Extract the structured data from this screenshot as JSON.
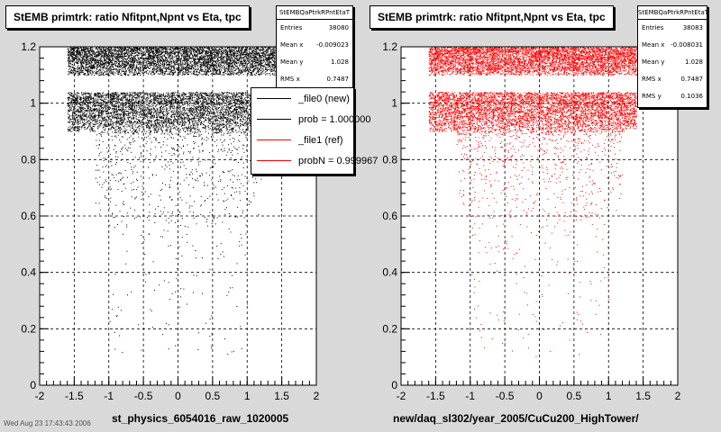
{
  "panels": [
    {
      "title": "StEMB primtrk: ratio Nfitpnt,Npnt vs Eta, tpc",
      "stats": {
        "name": "StEMBQaPtrkRPntEtaT",
        "rows": [
          {
            "label": "Entries",
            "value": "38080"
          },
          {
            "label": "Mean x",
            "value": "-0.009023"
          },
          {
            "label": "Mean y",
            "value": "1.028"
          },
          {
            "label": "RMS x",
            "value": "0.7487"
          }
        ]
      },
      "xlabel": "st_physics_6054016_raw_1020005",
      "color": "#000000"
    },
    {
      "title": "StEMB primtrk: ratio Nfitpnt,Npnt vs Eta, tpc",
      "stats": {
        "name": "StEMBQaPtrkRPntEtaT",
        "rows": [
          {
            "label": "Entries",
            "value": "38083"
          },
          {
            "label": "Mean x",
            "value": "-0.008031"
          },
          {
            "label": "Mean y",
            "value": "1.028"
          },
          {
            "label": "RMS x",
            "value": "0.7487"
          },
          {
            "label": "RMS y",
            "value": "0.1036"
          }
        ]
      },
      "xlabel": "new/daq_sl302/year_2005/CuCu200_HighTower/",
      "color": "#ff0000"
    }
  ],
  "legend": [
    {
      "label": "_file0 (new)",
      "color": "#000000"
    },
    {
      "label": "prob = 1.000000",
      "color": "#000000"
    },
    {
      "label": "_file1 (ref)",
      "color": "#ff0000"
    },
    {
      "label": "probN = 0.999967",
      "color": "#ff0000"
    }
  ],
  "footer": "Wed Aug 23 17:43:43 2006",
  "chart_data": [
    {
      "type": "scatter",
      "title": "StEMB primtrk: ratio Nfitpnt,Npnt vs Eta, tpc",
      "xlabel": "st_physics_6054016_raw_1020005",
      "ylabel": "",
      "xlim": [
        -2,
        2
      ],
      "ylim": [
        0,
        1.2
      ],
      "x_ticks": [
        "-2",
        "-1.5",
        "-1",
        "-0.5",
        "0",
        "0.5",
        "1",
        "1.5",
        "2"
      ],
      "y_ticks": [
        "0",
        "0.2",
        "0.4",
        "0.6",
        "0.8",
        "1",
        "1.2"
      ],
      "grid": true,
      "series": [
        {
          "name": "_file0 (new)",
          "color": "#000000"
        }
      ],
      "density_bands": [
        {
          "x_range": [
            -1.6,
            1.4
          ],
          "y_range": [
            0.9,
            1.04
          ],
          "level": "dense"
        },
        {
          "x_range": [
            -1.6,
            1.4
          ],
          "y_range": [
            1.1,
            1.2
          ],
          "level": "dense"
        },
        {
          "x_range": [
            -1.2,
            1.2
          ],
          "y_range": [
            0.6,
            0.9
          ],
          "level": "medium"
        },
        {
          "x_range": [
            -1.0,
            1.0
          ],
          "y_range": [
            0.1,
            0.6
          ],
          "level": "sparse"
        }
      ]
    },
    {
      "type": "scatter",
      "title": "StEMB primtrk: ratio Nfitpnt,Npnt vs Eta, tpc",
      "xlabel": "new/daq_sl302/year_2005/CuCu200_HighTower/",
      "ylabel": "",
      "xlim": [
        -2,
        2
      ],
      "ylim": [
        0,
        1.2
      ],
      "x_ticks": [
        "-2",
        "-1.5",
        "-1",
        "-0.5",
        "0",
        "0.5",
        "1",
        "1.5",
        "2"
      ],
      "y_ticks": [
        "0",
        "0.2",
        "0.4",
        "0.6",
        "0.8",
        "1",
        "1.2"
      ],
      "grid": true,
      "series": [
        {
          "name": "_file1 (ref)",
          "color": "#ff0000"
        }
      ],
      "density_bands": [
        {
          "x_range": [
            -1.6,
            1.4
          ],
          "y_range": [
            0.9,
            1.04
          ],
          "level": "dense"
        },
        {
          "x_range": [
            -1.6,
            1.4
          ],
          "y_range": [
            1.1,
            1.2
          ],
          "level": "dense"
        },
        {
          "x_range": [
            -1.2,
            1.2
          ],
          "y_range": [
            0.6,
            0.9
          ],
          "level": "medium"
        },
        {
          "x_range": [
            -1.0,
            1.0
          ],
          "y_range": [
            0.1,
            0.6
          ],
          "level": "sparse"
        }
      ]
    }
  ]
}
